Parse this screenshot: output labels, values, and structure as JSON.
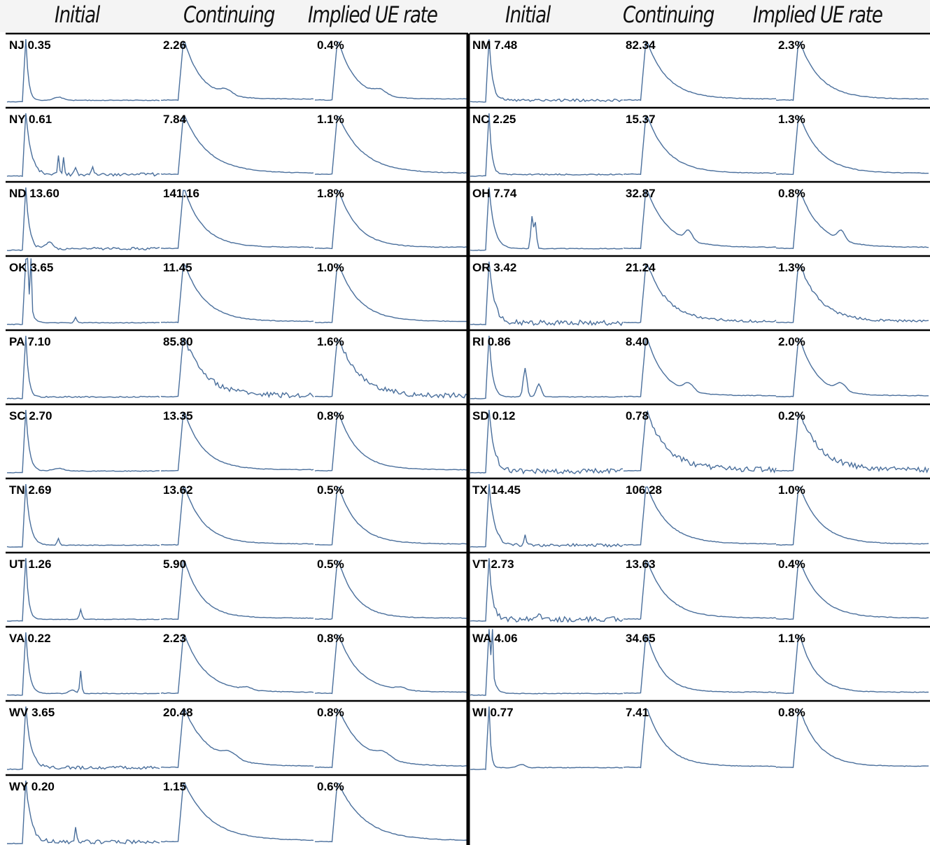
{
  "columns": {
    "left": [
      "Initial",
      "Continuing",
      "Implied UE rate"
    ],
    "right": [
      "Initial",
      "Continuing",
      "Implied UE rate"
    ]
  },
  "colors": {
    "series": "#4a6f9c",
    "separator": "#000000",
    "header_bg": "#f4f4f4"
  },
  "chart_data": {
    "type": "line",
    "layout": "small-multiples",
    "note": "Each panel shows a weekly time series; the printed number is the latest value (initial claims in thousands, continuing claims in thousands, implied unemployment rate).",
    "panels": [
      {
        "state": "NJ",
        "initial": "0.35",
        "continuing": "2.26",
        "rate": "0.4%",
        "shape": "nj"
      },
      {
        "state": "NY",
        "initial": "0.61",
        "continuing": "7.84",
        "rate": "1.1%",
        "shape": "ny"
      },
      {
        "state": "ND",
        "initial": "13.60",
        "continuing": "141.16",
        "rate": "1.8%",
        "shape": "nd"
      },
      {
        "state": "OK",
        "initial": "3.65",
        "continuing": "11.45",
        "rate": "1.0%",
        "shape": "ok"
      },
      {
        "state": "PA",
        "initial": "7.10",
        "continuing": "85.80",
        "rate": "1.6%",
        "shape": "pa"
      },
      {
        "state": "SC",
        "initial": "2.70",
        "continuing": "13.35",
        "rate": "0.8%",
        "shape": "sc"
      },
      {
        "state": "TN",
        "initial": "2.69",
        "continuing": "13.62",
        "rate": "0.5%",
        "shape": "tn"
      },
      {
        "state": "UT",
        "initial": "1.26",
        "continuing": "5.90",
        "rate": "0.5%",
        "shape": "ut"
      },
      {
        "state": "VA",
        "initial": "0.22",
        "continuing": "2.23",
        "rate": "0.8%",
        "shape": "va"
      },
      {
        "state": "WV",
        "initial": "3.65",
        "continuing": "20.48",
        "rate": "0.8%",
        "shape": "wv"
      },
      {
        "state": "WY",
        "initial": "0.20",
        "continuing": "1.15",
        "rate": "0.6%",
        "shape": "wy"
      },
      {
        "state": "NM",
        "initial": "7.48",
        "continuing": "82.34",
        "rate": "2.3%",
        "shape": "nm"
      },
      {
        "state": "NC",
        "initial": "2.25",
        "continuing": "15.37",
        "rate": "1.3%",
        "shape": "nc"
      },
      {
        "state": "OH",
        "initial": "7.74",
        "continuing": "32.87",
        "rate": "0.8%",
        "shape": "oh"
      },
      {
        "state": "OR",
        "initial": "3.42",
        "continuing": "21.24",
        "rate": "1.3%",
        "shape": "or"
      },
      {
        "state": "RI",
        "initial": "0.86",
        "continuing": "8.40",
        "rate": "2.0%",
        "shape": "ri"
      },
      {
        "state": "SD",
        "initial": "0.12",
        "continuing": "0.78",
        "rate": "0.2%",
        "shape": "sd"
      },
      {
        "state": "TX",
        "initial": "14.45",
        "continuing": "106.28",
        "rate": "1.0%",
        "shape": "tx"
      },
      {
        "state": "VT",
        "initial": "2.73",
        "continuing": "13.63",
        "rate": "0.4%",
        "shape": "vt"
      },
      {
        "state": "WA",
        "initial": "4.06",
        "continuing": "34.65",
        "rate": "1.1%",
        "shape": "wa"
      },
      {
        "state": "WI",
        "initial": "0.77",
        "continuing": "7.41",
        "rate": "0.8%",
        "shape": "wi"
      }
    ]
  }
}
